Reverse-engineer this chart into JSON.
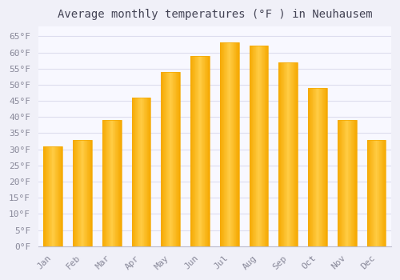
{
  "title": "Average monthly temperatures (°F ) in Neuhausem",
  "months": [
    "Jan",
    "Feb",
    "Mar",
    "Apr",
    "May",
    "Jun",
    "Jul",
    "Aug",
    "Sep",
    "Oct",
    "Nov",
    "Dec"
  ],
  "values": [
    31,
    33,
    39,
    46,
    54,
    59,
    63,
    62,
    57,
    49,
    39,
    33
  ],
  "bar_color_center": "#FFCC44",
  "bar_color_edge": "#F5A800",
  "background_color": "#F0F0F8",
  "plot_bg_color": "#F8F8FF",
  "grid_color": "#DDDDEE",
  "text_color": "#888899",
  "title_color": "#444455",
  "yticks": [
    0,
    5,
    10,
    15,
    20,
    25,
    30,
    35,
    40,
    45,
    50,
    55,
    60,
    65
  ],
  "ylim": [
    0,
    68
  ],
  "title_fontsize": 10,
  "tick_fontsize": 8,
  "font_family": "monospace",
  "bar_width": 0.65
}
